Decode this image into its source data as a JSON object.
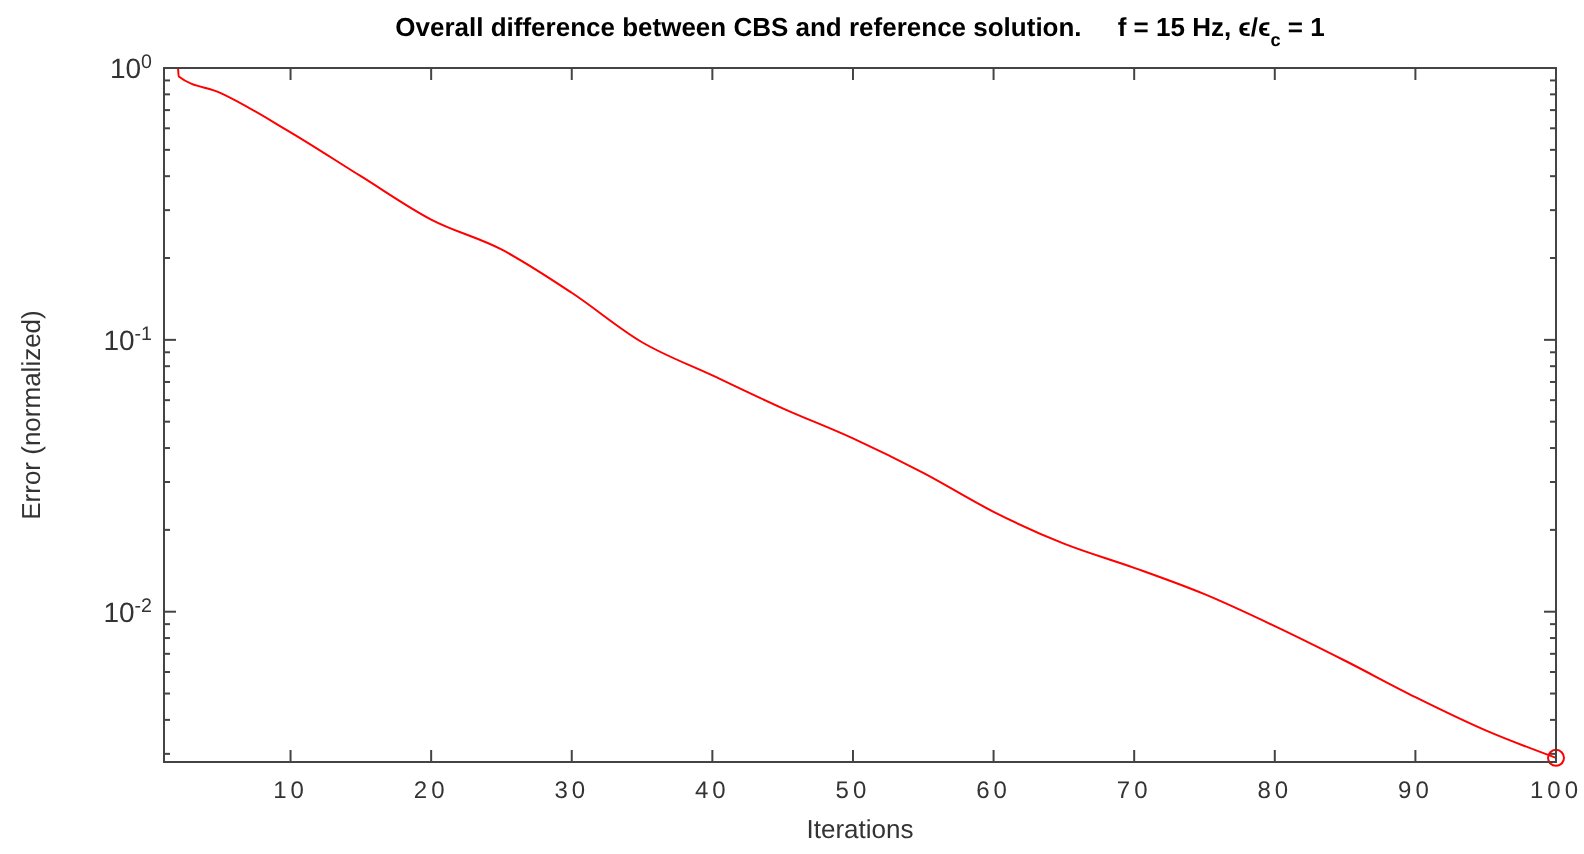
{
  "chart_data": {
    "type": "line",
    "title": "Overall difference between CBS and reference solution.     f = 15 Hz, ϵ/ϵ$_{c}$ = 1",
    "xlabel": "Iterations",
    "ylabel": "Error (normalized)",
    "log": true,
    "grid": false,
    "xlim": [
      1,
      100
    ],
    "xticks": [
      10,
      20,
      30,
      40,
      50,
      60,
      70,
      80,
      90,
      100
    ],
    "ylim": [
      0.0028,
      1
    ],
    "yticks": [
      {
        "value": 1,
        "label": "10$^{0}$"
      },
      {
        "value": 0.1,
        "label": "10$^{-1}$"
      },
      {
        "value": 0.01,
        "label": "10$^{-2}$"
      }
    ],
    "series": [
      {
        "color": "#ff0000",
        "marker": "none",
        "x": [
          2,
          2.05,
          5,
          10,
          15,
          20,
          25,
          30,
          35,
          40,
          45,
          50,
          55,
          60,
          65,
          70,
          75,
          80,
          85,
          90,
          95,
          100
        ],
        "values": [
          1,
          0.93,
          0.81,
          0.58,
          0.4,
          0.277,
          0.215,
          0.149,
          0.098,
          0.074,
          0.056,
          0.0434,
          0.0324,
          0.0233,
          0.0178,
          0.0145,
          0.0116,
          0.00885,
          0.0066,
          0.00485,
          0.00366,
          0.0029
        ]
      },
      {
        "type": "scatter",
        "color": "#ff0000",
        "marker": "circle",
        "x": [
          100
        ],
        "values": [
          0.0029
        ]
      }
    ]
  }
}
